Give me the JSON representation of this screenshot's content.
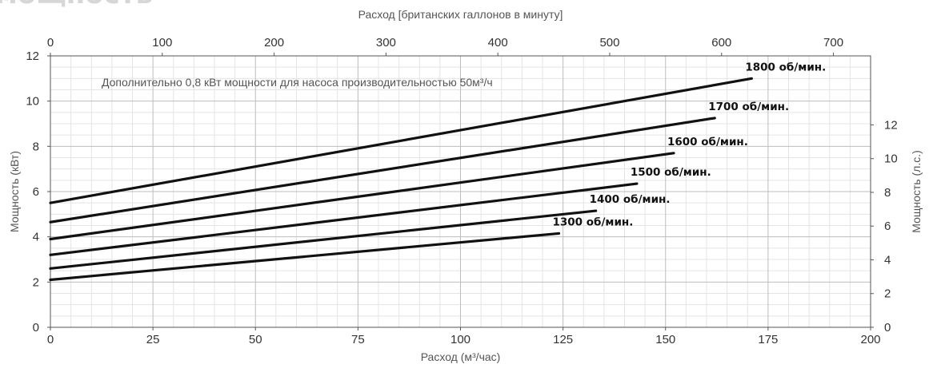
{
  "header": {
    "title_fragment": "мощность"
  },
  "chart_data": {
    "type": "line",
    "title": "",
    "xlabel": "Расход (м³/час)",
    "x2label": "Расход [британских галлонов в минуту]",
    "ylabel": "Мощность (кВт)",
    "y2label": "Мощность (л.с.)",
    "xlim": [
      0,
      200
    ],
    "ylim": [
      0,
      12
    ],
    "x_ticks": [
      0,
      25,
      50,
      75,
      100,
      125,
      150,
      175,
      200
    ],
    "y_ticks": [
      0,
      2,
      4,
      6,
      8,
      10,
      12
    ],
    "x2_ticks": [
      0,
      100,
      200,
      300,
      400,
      500,
      600,
      700
    ],
    "y2_ticks": [
      0,
      2,
      4,
      6,
      8,
      10,
      12
    ],
    "grid": true,
    "annotation": "Дополнительно 0,8 кВт мощности для насоса производительностью 50м³/ч",
    "series": [
      {
        "name": "1800 об/мин.",
        "x": [
          0,
          171
        ],
        "y": [
          5.5,
          11.0
        ]
      },
      {
        "name": "1700 об/мин.",
        "x": [
          0,
          162
        ],
        "y": [
          4.65,
          9.25
        ]
      },
      {
        "name": "1600 об/мин.",
        "x": [
          0,
          152
        ],
        "y": [
          3.9,
          7.7
        ]
      },
      {
        "name": "1500 об/мин.",
        "x": [
          0,
          143
        ],
        "y": [
          3.2,
          6.35
        ]
      },
      {
        "name": "1400 об/мин.",
        "x": [
          0,
          133
        ],
        "y": [
          2.6,
          5.15
        ]
      },
      {
        "name": "1300 об/мин.",
        "x": [
          0,
          124
        ],
        "y": [
          2.1,
          4.15
        ]
      }
    ]
  }
}
